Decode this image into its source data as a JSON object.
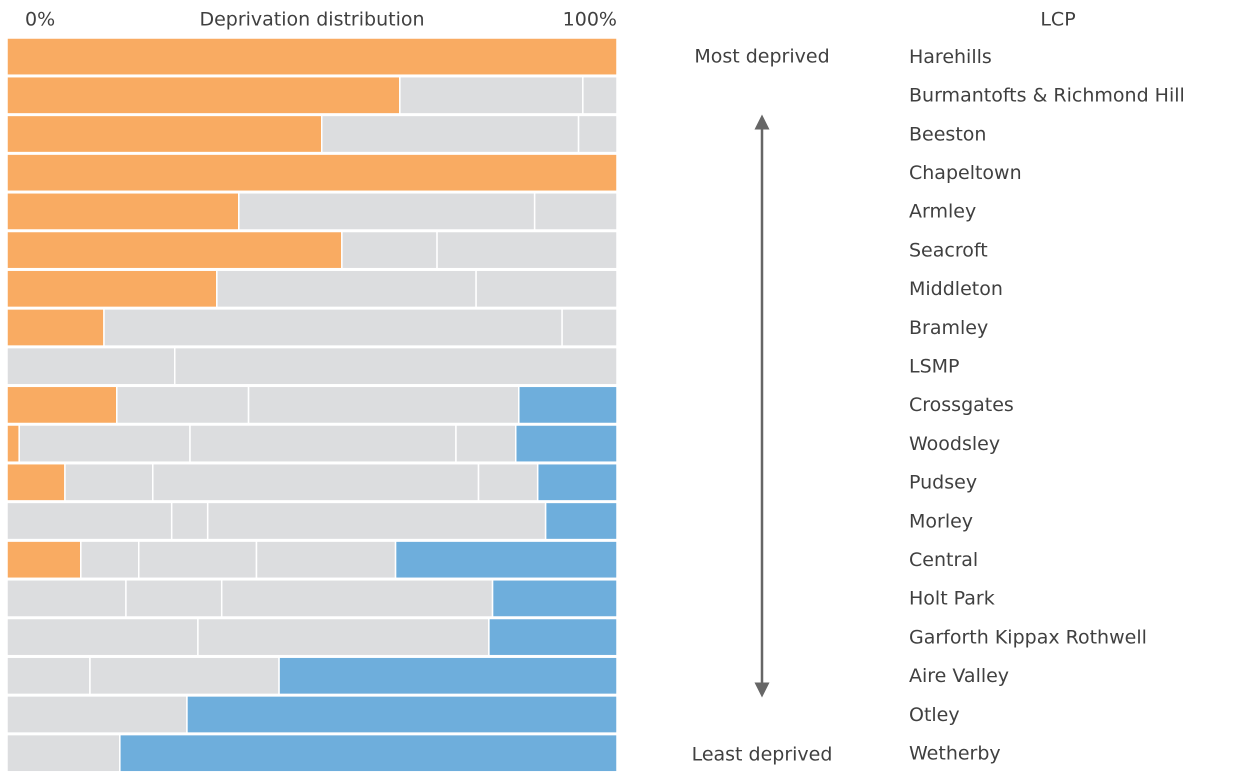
{
  "chart_data": {
    "type": "stacked-bar-100",
    "title": "Deprivation distribution",
    "category_axis_label": "LCP",
    "annotations": {
      "top": "Most deprived",
      "bottom": "Least deprived"
    },
    "xlim": [
      0,
      100
    ],
    "xticks": [
      {
        "value": 0,
        "label": "0%"
      },
      {
        "value": 100,
        "label": "100%"
      }
    ],
    "categories": [
      "Harehills",
      "Burmantofts & Richmond Hill",
      "Beeston",
      "Chapeltown",
      "Armley",
      "Seacroft",
      "Middleton",
      "Bramley",
      "LSMP",
      "Crossgates",
      "Woodsley",
      "Pudsey",
      "Morley",
      "Central",
      "Holt Park",
      "Garforth Kippax Rothwell",
      "Aire Valley",
      "Otley",
      "Wetherby"
    ],
    "rows": [
      {
        "values": [
          100
        ],
        "colors": [
          "#f9ab62"
        ]
      },
      {
        "values": [
          64.4,
          30.0,
          5.6
        ],
        "colors": [
          "#f9ab62",
          "#dcdddf",
          "#dcdddf"
        ]
      },
      {
        "values": [
          51.6,
          42.1,
          6.3
        ],
        "colors": [
          "#f9ab62",
          "#dcdddf",
          "#dcdddf"
        ]
      },
      {
        "values": [
          100
        ],
        "colors": [
          "#f9ab62"
        ]
      },
      {
        "values": [
          38.0,
          48.5,
          13.5
        ],
        "colors": [
          "#f9ab62",
          "#dcdddf",
          "#dcdddf"
        ]
      },
      {
        "values": [
          54.9,
          15.6,
          29.5
        ],
        "colors": [
          "#f9ab62",
          "#dcdddf",
          "#dcdddf"
        ]
      },
      {
        "values": [
          34.4,
          42.5,
          23.1
        ],
        "colors": [
          "#f9ab62",
          "#dcdddf",
          "#dcdddf"
        ]
      },
      {
        "values": [
          15.9,
          75.1,
          9.0
        ],
        "colors": [
          "#f9ab62",
          "#dcdddf",
          "#dcdddf"
        ]
      },
      {
        "values": [
          27.5,
          72.5
        ],
        "colors": [
          "#dcdddf",
          "#dcdddf"
        ]
      },
      {
        "values": [
          18.0,
          21.6,
          44.3,
          16.1
        ],
        "colors": [
          "#f9ab62",
          "#dcdddf",
          "#dcdddf",
          "#6eaedc"
        ]
      },
      {
        "values": [
          2.0,
          28.0,
          43.6,
          9.8,
          16.6
        ],
        "colors": [
          "#f9ab62",
          "#dcdddf",
          "#dcdddf",
          "#dcdddf",
          "#6eaedc"
        ]
      },
      {
        "values": [
          9.5,
          14.4,
          53.4,
          9.7,
          13.0
        ],
        "colors": [
          "#f9ab62",
          "#dcdddf",
          "#dcdddf",
          "#dcdddf",
          "#6eaedc"
        ]
      },
      {
        "values": [
          27.0,
          5.9,
          55.4,
          11.7
        ],
        "colors": [
          "#dcdddf",
          "#dcdddf",
          "#dcdddf",
          "#6eaedc"
        ]
      },
      {
        "values": [
          12.1,
          9.5,
          19.3,
          22.8,
          36.3
        ],
        "colors": [
          "#f9ab62",
          "#dcdddf",
          "#dcdddf",
          "#dcdddf",
          "#6eaedc"
        ]
      },
      {
        "values": [
          19.5,
          15.7,
          44.4,
          20.4
        ],
        "colors": [
          "#dcdddf",
          "#dcdddf",
          "#dcdddf",
          "#6eaedc"
        ]
      },
      {
        "values": [
          31.3,
          47.7,
          21.0
        ],
        "colors": [
          "#dcdddf",
          "#dcdddf",
          "#6eaedc"
        ]
      },
      {
        "values": [
          13.6,
          31.0,
          55.4
        ],
        "colors": [
          "#dcdddf",
          "#dcdddf",
          "#6eaedc"
        ]
      },
      {
        "values": [
          29.5,
          70.5
        ],
        "colors": [
          "#dcdddf",
          "#6eaedc"
        ]
      },
      {
        "values": [
          18.5,
          81.5
        ],
        "colors": [
          "#dcdddf",
          "#6eaedc"
        ]
      }
    ]
  }
}
